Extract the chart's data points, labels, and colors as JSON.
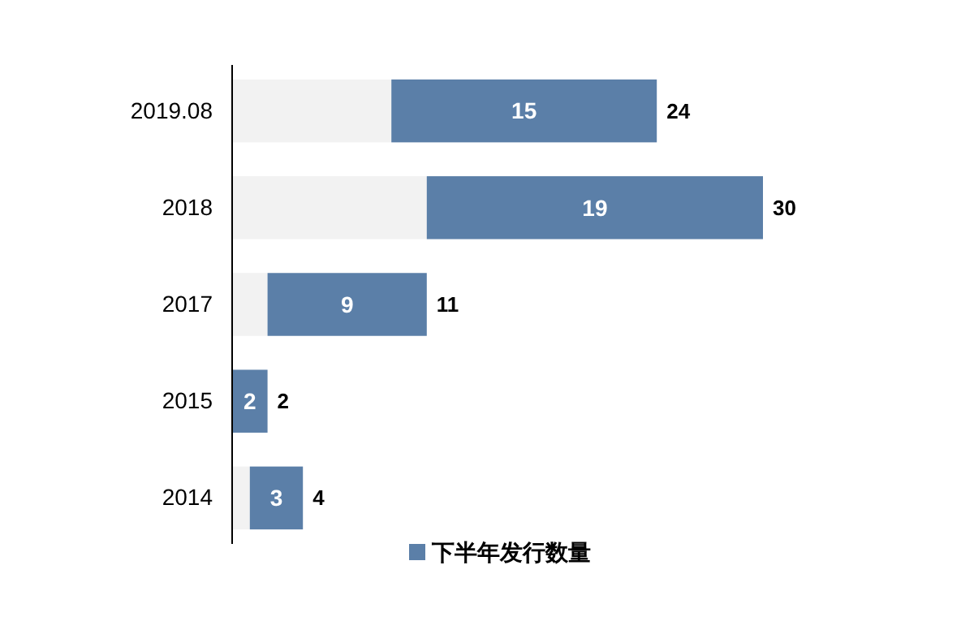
{
  "chart_data": {
    "type": "bar",
    "orientation": "horizontal",
    "stacked": true,
    "categories": [
      "2019.08",
      "2018",
      "2017",
      "2015",
      "2014"
    ],
    "series": [
      {
        "color": "#f2f2f2",
        "values": [
          9,
          11,
          2,
          0,
          1
        ]
      },
      {
        "name": "下半年发行数量",
        "color": "#5b7fa8",
        "values": [
          15,
          19,
          9,
          2,
          3
        ],
        "value_labels": [
          "15",
          "19",
          "9",
          "2",
          "3"
        ]
      }
    ],
    "totals": [
      "24",
      "30",
      "11",
      "2",
      "4"
    ],
    "legend": "bottom",
    "tick_labels": "y"
  }
}
